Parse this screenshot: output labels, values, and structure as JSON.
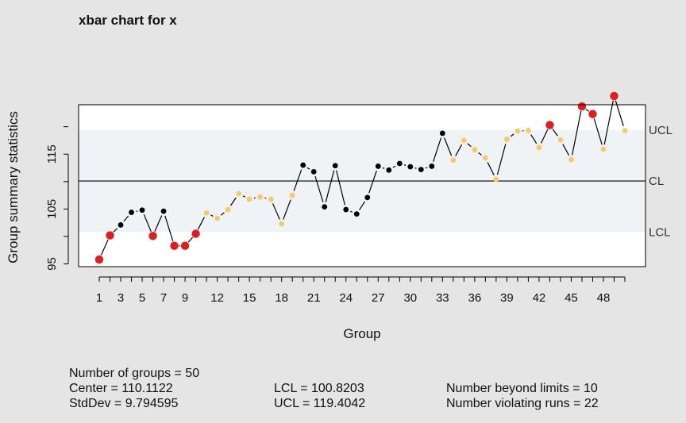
{
  "chart_data": {
    "type": "line",
    "title": "xbar chart for x",
    "xlabel": "Group",
    "ylabel": "Group summary statistics",
    "x_range": [
      1,
      50
    ],
    "ylim": [
      94.5,
      124
    ],
    "y_ticks": [
      95,
      105,
      115
    ],
    "x_tick_labels": [
      "1",
      "3",
      "5",
      "7",
      "9",
      "12",
      "15",
      "18",
      "21",
      "24",
      "27",
      "30",
      "33",
      "36",
      "39",
      "42",
      "45",
      "48"
    ],
    "x_tick_positions": [
      1,
      3,
      5,
      7,
      9,
      12,
      15,
      18,
      21,
      24,
      27,
      30,
      33,
      36,
      39,
      42,
      45,
      48
    ],
    "center": 110.1122,
    "lcl": 100.8203,
    "ucl": 119.4042,
    "limit_labels": {
      "ucl": "UCL",
      "cl": "CL",
      "lcl": "LCL"
    },
    "x": [
      1,
      2,
      3,
      4,
      5,
      6,
      7,
      8,
      9,
      10,
      11,
      12,
      13,
      14,
      15,
      16,
      17,
      18,
      19,
      20,
      21,
      22,
      23,
      24,
      25,
      26,
      27,
      28,
      29,
      30,
      31,
      32,
      33,
      34,
      35,
      36,
      37,
      38,
      39,
      40,
      41,
      42,
      43,
      44,
      45,
      46,
      47,
      48,
      49,
      50
    ],
    "values": [
      95.8,
      100.2,
      102.1,
      104.4,
      104.8,
      100.1,
      104.6,
      98.3,
      98.3,
      100.5,
      104.3,
      103.3,
      104.9,
      107.8,
      106.8,
      107.2,
      106.8,
      102.3,
      107.5,
      113.0,
      111.8,
      105.4,
      112.9,
      104.9,
      104.1,
      107.1,
      112.8,
      112.1,
      113.3,
      112.7,
      112.2,
      112.8,
      118.8,
      113.9,
      117.5,
      115.8,
      114.3,
      110.4,
      117.7,
      119.2,
      119.3,
      116.2,
      120.3,
      117.6,
      114.0,
      123.7,
      122.3,
      115.9,
      125.6,
      119.3
    ],
    "point_status": [
      "violation",
      "violation",
      "normal",
      "normal",
      "normal",
      "violation",
      "normal",
      "violation",
      "violation",
      "violation",
      "run",
      "run",
      "run",
      "run",
      "run",
      "run",
      "run",
      "run",
      "run",
      "normal",
      "normal",
      "normal",
      "normal",
      "normal",
      "normal",
      "normal",
      "normal",
      "normal",
      "normal",
      "normal",
      "normal",
      "normal",
      "normal",
      "run",
      "run",
      "run",
      "run",
      "run",
      "run",
      "run",
      "run",
      "run",
      "violation",
      "run",
      "run",
      "violation",
      "violation",
      "run",
      "violation",
      "run"
    ],
    "colors": {
      "normal": "#000000",
      "run": "#f7ca64",
      "violation": "#e41a1c",
      "zone": "#f0f3f6",
      "plot_bg": "#ffffff",
      "page_bg": "#e5e5e5"
    }
  },
  "stats": {
    "n_groups": "Number of groups = 50",
    "center": "Center = 110.1122",
    "stddev": "StdDev = 9.794595",
    "lcl": "LCL = 100.8203",
    "ucl": "UCL = 119.4042",
    "beyond": "Number beyond limits = 10",
    "violating": "Number violating runs = 22"
  }
}
